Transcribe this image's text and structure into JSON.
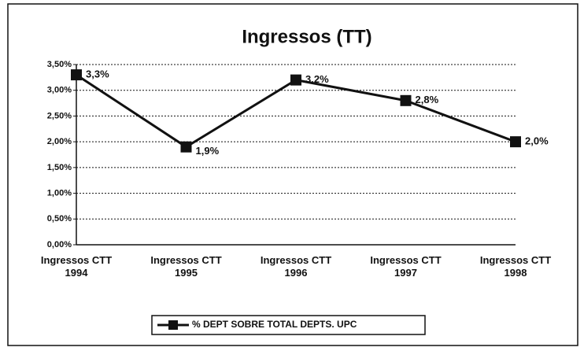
{
  "chart_data": {
    "type": "line",
    "title": "Ingressos (TT)",
    "categories": [
      "Ingressos CTT 1994",
      "Ingressos CTT 1995",
      "Ingressos CTT 1996",
      "Ingressos CTT 1997",
      "Ingressos CTT 1998"
    ],
    "series": [
      {
        "name": "% DEPT SOBRE TOTAL DEPTS. UPC",
        "color": "#111111",
        "values": [
          3.3,
          1.9,
          3.2,
          2.8,
          2.0
        ],
        "value_labels": [
          "3,3%",
          "1,9%",
          "3,2%",
          "2,8%",
          "2,0%"
        ]
      }
    ],
    "ylim": [
      0,
      3.5
    ],
    "yticks": [
      {
        "value": 0,
        "label": "0,00%"
      },
      {
        "value": 0.5,
        "label": "0,50%"
      },
      {
        "value": 1,
        "label": "1,00%"
      },
      {
        "value": 1.5,
        "label": "1,50%"
      },
      {
        "value": 2,
        "label": "2,00%"
      },
      {
        "value": 2.5,
        "label": "2,50%"
      },
      {
        "value": 3,
        "label": "3,00%"
      },
      {
        "value": 3.5,
        "label": "3,50%"
      }
    ],
    "grid": true,
    "legend": "bottom"
  }
}
